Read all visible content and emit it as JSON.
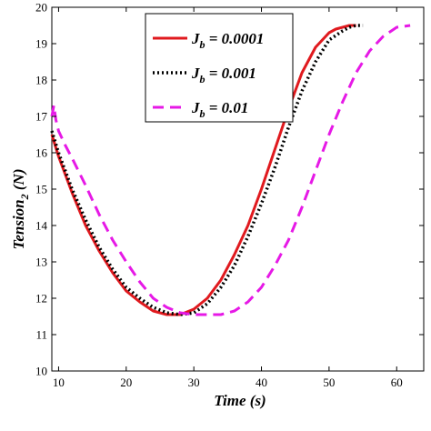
{
  "chart_data": {
    "type": "line",
    "title": "",
    "xlabel": "Time (s)",
    "ylabel_main": "Tension",
    "ylabel_sub": "2",
    "ylabel_unit": " (N)",
    "xlim": [
      9,
      64
    ],
    "ylim": [
      10,
      20
    ],
    "xticks": [
      10,
      20,
      30,
      40,
      50,
      60
    ],
    "yticks": [
      10,
      11,
      12,
      13,
      14,
      15,
      16,
      17,
      18,
      19,
      20
    ],
    "grid": false,
    "legend_position": "top-right",
    "series": [
      {
        "label_main": "J",
        "label_sub": "b",
        "label_rest": " = 0.0001",
        "color": "#e0191e",
        "dash": "",
        "width": 3,
        "x": [
          9,
          10,
          12,
          14,
          16,
          18,
          20,
          22,
          24,
          26,
          28,
          30,
          32,
          34,
          36,
          38,
          40,
          42,
          44,
          46,
          48,
          50,
          51,
          52,
          53,
          54
        ],
        "y": [
          16.5,
          15.9,
          14.9,
          14.0,
          13.3,
          12.7,
          12.2,
          11.9,
          11.65,
          11.55,
          11.55,
          11.7,
          12.0,
          12.5,
          13.2,
          14.0,
          15.0,
          16.1,
          17.2,
          18.2,
          18.9,
          19.3,
          19.4,
          19.45,
          19.5,
          19.5
        ]
      },
      {
        "label_main": "J",
        "label_sub": "b",
        "label_rest": " = 0.001",
        "color": "#000000",
        "dash": "2 3",
        "width": 3.5,
        "x": [
          9,
          10,
          12,
          14,
          16,
          18,
          20,
          22,
          24,
          26,
          28,
          30,
          32,
          34,
          36,
          38,
          40,
          42,
          44,
          46,
          48,
          50,
          52,
          53,
          54,
          55
        ],
        "y": [
          16.6,
          16.0,
          15.0,
          14.15,
          13.4,
          12.8,
          12.3,
          12.0,
          11.75,
          11.6,
          11.55,
          11.6,
          11.85,
          12.3,
          12.9,
          13.7,
          14.6,
          15.6,
          16.7,
          17.7,
          18.5,
          19.1,
          19.35,
          19.45,
          19.5,
          19.5
        ]
      },
      {
        "label_main": "J",
        "label_sub": "b",
        "label_rest": " = 0.01",
        "color": "#e619e6",
        "dash": "12 7",
        "width": 3,
        "x": [
          9,
          9.3,
          9.6,
          10,
          11,
          12,
          14,
          16,
          18,
          20,
          22,
          24,
          26,
          28,
          30,
          32,
          34,
          36,
          38,
          40,
          42,
          44,
          46,
          48,
          50,
          52,
          54,
          56,
          58,
          60,
          62
        ],
        "y": [
          17.0,
          17.3,
          16.9,
          16.6,
          16.2,
          15.85,
          15.1,
          14.3,
          13.6,
          13.0,
          12.45,
          12.0,
          11.75,
          11.6,
          11.55,
          11.55,
          11.55,
          11.65,
          11.9,
          12.3,
          12.9,
          13.6,
          14.5,
          15.5,
          16.5,
          17.4,
          18.2,
          18.8,
          19.2,
          19.45,
          19.5
        ]
      }
    ]
  }
}
